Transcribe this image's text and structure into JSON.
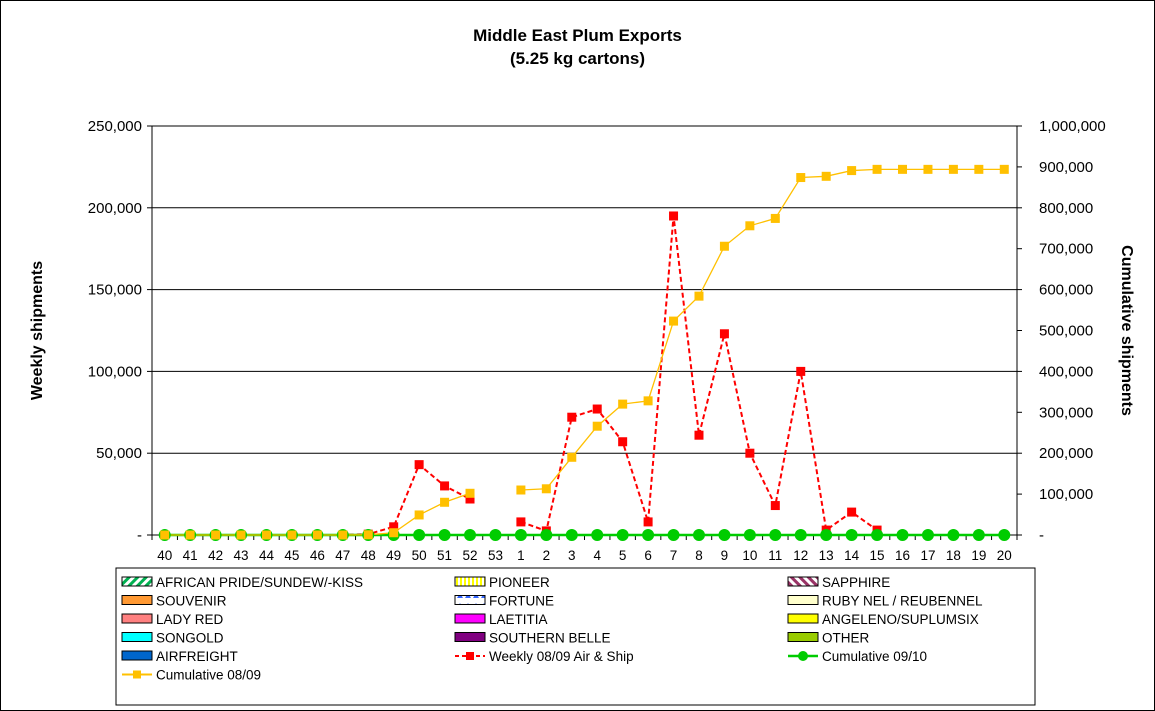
{
  "chart_data": {
    "type": "line",
    "title": "Middle East Plum Exports",
    "subtitle": "(5.25 kg cartons)",
    "ylabel": "Weekly shipments",
    "y2label": "Cumulative shipments",
    "ylim": [
      0,
      250000
    ],
    "y2lim": [
      0,
      1000000
    ],
    "y_ticks": [
      "-",
      "50,000",
      "100,000",
      "150,000",
      "200,000",
      "250,000"
    ],
    "y2_ticks": [
      "-",
      "100,000",
      "200,000",
      "300,000",
      "400,000",
      "500,000",
      "600,000",
      "700,000",
      "800,000",
      "900,000",
      "1,000,000"
    ],
    "categories": [
      "40",
      "41",
      "42",
      "43",
      "44",
      "45",
      "46",
      "47",
      "48",
      "49",
      "50",
      "51",
      "52",
      "53",
      "1",
      "2",
      "3",
      "4",
      "5",
      "6",
      "7",
      "8",
      "9",
      "10",
      "11",
      "12",
      "13",
      "14",
      "15",
      "16",
      "17",
      "18",
      "19",
      "20"
    ],
    "grid": true,
    "legend_position": "bottom",
    "series": [
      {
        "name": "Weekly 08/09 Air & Ship",
        "axis": "left",
        "color": "#ff0000",
        "style": "dashed",
        "marker": "square",
        "values": [
          0,
          0,
          0,
          0,
          0,
          0,
          0,
          0,
          500,
          5000,
          43000,
          30000,
          22000,
          null,
          8000,
          2500,
          72000,
          77000,
          57000,
          8000,
          195000,
          61000,
          123000,
          50000,
          18000,
          100000,
          3000,
          14000,
          3000,
          null,
          null,
          null,
          null,
          null
        ]
      },
      {
        "name": "Cumulative 09/10",
        "axis": "left",
        "color": "#00cc00",
        "style": "solid",
        "marker": "circle",
        "values": [
          0,
          0,
          0,
          0,
          0,
          0,
          0,
          0,
          0,
          0,
          0,
          0,
          0,
          0,
          0,
          0,
          0,
          0,
          0,
          0,
          0,
          0,
          0,
          0,
          0,
          0,
          0,
          0,
          0,
          0,
          0,
          0,
          0,
          0
        ]
      },
      {
        "name": "Cumulative 08/09",
        "axis": "right",
        "color": "#ffc000",
        "style": "solid",
        "marker": "square",
        "values": [
          0,
          0,
          0,
          0,
          0,
          0,
          0,
          0,
          500,
          5500,
          49000,
          80000,
          102000,
          null,
          110000,
          113000,
          190000,
          266000,
          320000,
          328000,
          523000,
          584000,
          706000,
          756000,
          774000,
          874000,
          877000,
          891000,
          894000,
          894000,
          894000,
          894000,
          894000,
          894000
        ]
      }
    ],
    "legend_entries": [
      {
        "label": "AFRICAN PRIDE/SUNDEW/-KISS",
        "swatch": "green-stripe"
      },
      {
        "label": "PIONEER",
        "swatch": "yellow-vstripe"
      },
      {
        "label": "SAPPHIRE",
        "swatch": "maroon-stripe"
      },
      {
        "label": "SOUVENIR",
        "swatch": "orange"
      },
      {
        "label": "FORTUNE",
        "swatch": "blue-dots"
      },
      {
        "label": "RUBY NEL / REUBENNEL",
        "swatch": "cream"
      },
      {
        "label": "LADY RED",
        "swatch": "salmon"
      },
      {
        "label": "LAETITIA",
        "swatch": "magenta"
      },
      {
        "label": "ANGELENO/SUPLUMSIX",
        "swatch": "yellow"
      },
      {
        "label": "SONGOLD",
        "swatch": "cyan"
      },
      {
        "label": "SOUTHERN BELLE",
        "swatch": "purple"
      },
      {
        "label": "OTHER",
        "swatch": "olive"
      },
      {
        "label": "AIRFREIGHT",
        "swatch": "blue"
      },
      {
        "label": "Weekly 08/09 Air & Ship",
        "swatch": "line-red"
      },
      {
        "label": "Cumulative 09/10",
        "swatch": "line-green"
      },
      {
        "label": "Cumulative 08/09",
        "swatch": "line-gold"
      }
    ]
  }
}
